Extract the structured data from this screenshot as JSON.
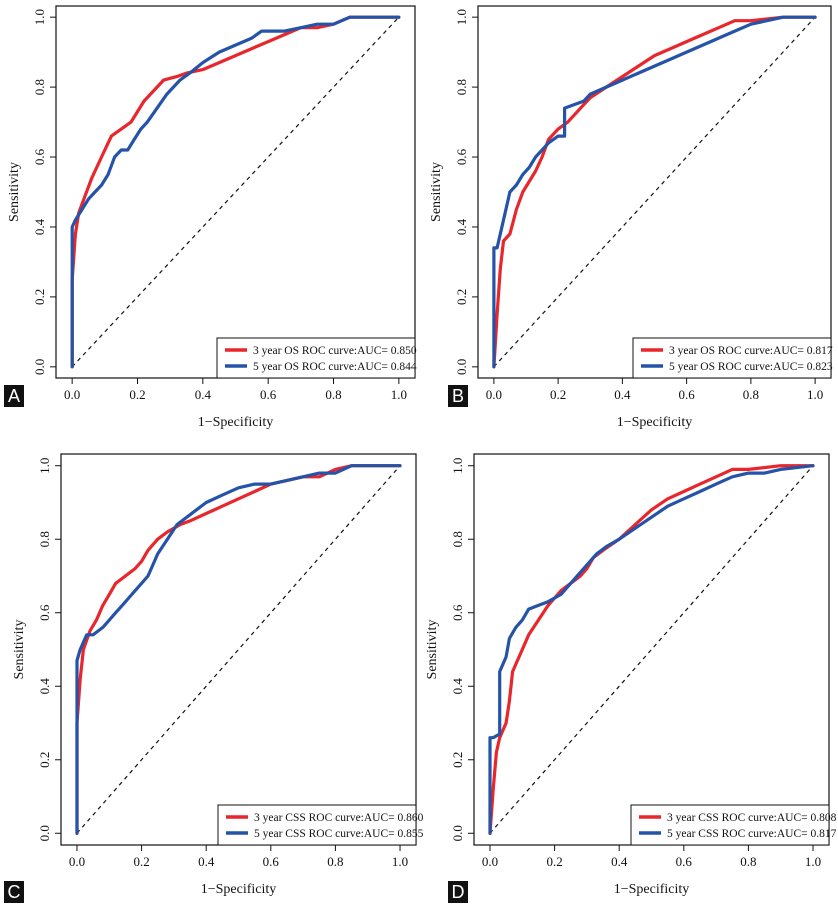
{
  "colors": {
    "year3": "#e8262b",
    "year5": "#2553a8",
    "diagonal": "#111111",
    "letter_bg": "#111111",
    "letter_fg": "#ffffff"
  },
  "chart_data": [
    {
      "panel": "A",
      "type": "line",
      "xlabel": "1−Specificity",
      "ylabel": "Sensitivity",
      "xlim": [
        0,
        1
      ],
      "ylim": [
        0,
        1
      ],
      "x_ticks": [
        "0.0",
        "0.2",
        "0.4",
        "0.6",
        "0.8",
        "1.0"
      ],
      "y_ticks": [
        "0.0",
        "0.2",
        "0.4",
        "0.6",
        "0.8",
        "1.0"
      ],
      "reference_line": "diagonal",
      "legend_position": "bottom-right",
      "series": [
        {
          "name": "3 year OS ROC curve:AUC= 0.850",
          "color_key": "year3",
          "x": [
            0,
            0,
            0.01,
            0.02,
            0.04,
            0.06,
            0.08,
            0.1,
            0.12,
            0.15,
            0.18,
            0.2,
            0.22,
            0.25,
            0.28,
            0.32,
            0.35,
            0.4,
            0.45,
            0.5,
            0.55,
            0.6,
            0.65,
            0.7,
            0.75,
            0.8,
            0.85,
            0.9,
            1
          ],
          "y": [
            0,
            0.25,
            0.38,
            0.44,
            0.49,
            0.54,
            0.58,
            0.62,
            0.66,
            0.68,
            0.7,
            0.73,
            0.76,
            0.79,
            0.82,
            0.83,
            0.84,
            0.85,
            0.87,
            0.89,
            0.91,
            0.93,
            0.95,
            0.97,
            0.97,
            0.98,
            1,
            1,
            1
          ]
        },
        {
          "name": "5 year OS ROC curve:AUC= 0.844",
          "color_key": "year5",
          "x": [
            0,
            0,
            0.01,
            0.03,
            0.05,
            0.07,
            0.09,
            0.11,
            0.13,
            0.15,
            0.17,
            0.19,
            0.21,
            0.23,
            0.26,
            0.29,
            0.31,
            0.33,
            0.36,
            0.4,
            0.45,
            0.5,
            0.55,
            0.58,
            0.65,
            0.7,
            0.75,
            0.8,
            0.85,
            1
          ],
          "y": [
            0,
            0.4,
            0.42,
            0.45,
            0.48,
            0.5,
            0.52,
            0.55,
            0.6,
            0.62,
            0.62,
            0.65,
            0.68,
            0.7,
            0.74,
            0.78,
            0.8,
            0.82,
            0.84,
            0.87,
            0.9,
            0.92,
            0.94,
            0.96,
            0.96,
            0.97,
            0.98,
            0.98,
            1,
            1
          ]
        }
      ]
    },
    {
      "panel": "B",
      "type": "line",
      "xlabel": "1−Specificity",
      "ylabel": "Sensitivity",
      "xlim": [
        0,
        1
      ],
      "ylim": [
        0,
        1
      ],
      "x_ticks": [
        "0.0",
        "0.2",
        "0.4",
        "0.6",
        "0.8",
        "1.0"
      ],
      "y_ticks": [
        "0.0",
        "0.2",
        "0.4",
        "0.6",
        "0.8",
        "1.0"
      ],
      "reference_line": "diagonal",
      "legend_position": "bottom-right",
      "series": [
        {
          "name": "3 year OS ROC curve:AUC= 0.817",
          "color_key": "year3",
          "x": [
            0,
            0.01,
            0.02,
            0.03,
            0.05,
            0.07,
            0.09,
            0.11,
            0.13,
            0.15,
            0.17,
            0.2,
            0.23,
            0.25,
            0.28,
            0.3,
            0.35,
            0.4,
            0.45,
            0.5,
            0.55,
            0.6,
            0.65,
            0.7,
            0.75,
            0.8,
            0.9,
            1
          ],
          "y": [
            0,
            0.15,
            0.28,
            0.36,
            0.38,
            0.45,
            0.5,
            0.53,
            0.56,
            0.6,
            0.65,
            0.68,
            0.7,
            0.72,
            0.75,
            0.77,
            0.8,
            0.83,
            0.86,
            0.89,
            0.91,
            0.93,
            0.95,
            0.97,
            0.99,
            0.99,
            1,
            1
          ]
        },
        {
          "name": "5 year OS ROC curve:AUC= 0.823",
          "color_key": "year5",
          "x": [
            0,
            0,
            0.01,
            0.03,
            0.05,
            0.07,
            0.09,
            0.11,
            0.13,
            0.15,
            0.17,
            0.2,
            0.22,
            0.22,
            0.25,
            0.28,
            0.3,
            0.35,
            0.4,
            0.45,
            0.5,
            0.55,
            0.6,
            0.65,
            0.7,
            0.75,
            0.8,
            0.85,
            0.9,
            1
          ],
          "y": [
            0,
            0.34,
            0.34,
            0.42,
            0.5,
            0.52,
            0.55,
            0.57,
            0.6,
            0.62,
            0.64,
            0.66,
            0.66,
            0.74,
            0.75,
            0.76,
            0.78,
            0.8,
            0.82,
            0.84,
            0.86,
            0.88,
            0.9,
            0.92,
            0.94,
            0.96,
            0.98,
            0.99,
            1,
            1
          ]
        }
      ]
    },
    {
      "panel": "C",
      "type": "line",
      "xlabel": "1−Specificity",
      "ylabel": "Sensitivity",
      "xlim": [
        0,
        1
      ],
      "ylim": [
        0,
        1
      ],
      "x_ticks": [
        "0.0",
        "0.2",
        "0.4",
        "0.6",
        "0.8",
        "1.0"
      ],
      "y_ticks": [
        "0.0",
        "0.2",
        "0.4",
        "0.6",
        "0.8",
        "1.0"
      ],
      "reference_line": "diagonal",
      "legend_position": "bottom-right",
      "series": [
        {
          "name": "3 year CSS ROC curve:AUC= 0.860",
          "color_key": "year3",
          "x": [
            0,
            0,
            0.01,
            0.02,
            0.04,
            0.06,
            0.08,
            0.1,
            0.12,
            0.15,
            0.18,
            0.2,
            0.22,
            0.25,
            0.28,
            0.32,
            0.35,
            0.4,
            0.45,
            0.5,
            0.55,
            0.6,
            0.65,
            0.7,
            0.75,
            0.8,
            0.85,
            0.9,
            1
          ],
          "y": [
            0,
            0.3,
            0.42,
            0.5,
            0.55,
            0.58,
            0.62,
            0.65,
            0.68,
            0.7,
            0.72,
            0.74,
            0.77,
            0.8,
            0.82,
            0.84,
            0.85,
            0.87,
            0.89,
            0.91,
            0.93,
            0.95,
            0.96,
            0.97,
            0.97,
            0.99,
            1,
            1,
            1
          ]
        },
        {
          "name": "5 year CSS ROC curve:AUC= 0.855",
          "color_key": "year5",
          "x": [
            0,
            0,
            0.01,
            0.03,
            0.05,
            0.08,
            0.1,
            0.12,
            0.14,
            0.16,
            0.18,
            0.2,
            0.22,
            0.25,
            0.28,
            0.31,
            0.34,
            0.37,
            0.4,
            0.45,
            0.5,
            0.55,
            0.6,
            0.65,
            0.7,
            0.75,
            0.8,
            0.85,
            1
          ],
          "y": [
            0,
            0.47,
            0.5,
            0.54,
            0.54,
            0.56,
            0.58,
            0.6,
            0.62,
            0.64,
            0.66,
            0.68,
            0.7,
            0.76,
            0.8,
            0.84,
            0.86,
            0.88,
            0.9,
            0.92,
            0.94,
            0.95,
            0.95,
            0.96,
            0.97,
            0.98,
            0.98,
            1,
            1
          ]
        }
      ]
    },
    {
      "panel": "D",
      "type": "line",
      "xlabel": "1−Specificity",
      "ylabel": "Sensitivity",
      "xlim": [
        0,
        1
      ],
      "ylim": [
        0,
        1
      ],
      "x_ticks": [
        "0.0",
        "0.2",
        "0.4",
        "0.6",
        "0.8",
        "1.0"
      ],
      "y_ticks": [
        "0.0",
        "0.2",
        "0.4",
        "0.6",
        "0.8",
        "1.0"
      ],
      "reference_line": "diagonal",
      "legend_position": "bottom-right",
      "series": [
        {
          "name": "3 year CSS ROC curve:AUC= 0.808",
          "color_key": "year3",
          "x": [
            0,
            0.01,
            0.02,
            0.03,
            0.04,
            0.05,
            0.06,
            0.07,
            0.08,
            0.1,
            0.12,
            0.15,
            0.18,
            0.2,
            0.22,
            0.25,
            0.28,
            0.3,
            0.32,
            0.35,
            0.4,
            0.45,
            0.5,
            0.55,
            0.6,
            0.65,
            0.7,
            0.75,
            0.8,
            0.9,
            1
          ],
          "y": [
            0,
            0.12,
            0.22,
            0.26,
            0.28,
            0.3,
            0.36,
            0.44,
            0.46,
            0.5,
            0.54,
            0.58,
            0.62,
            0.64,
            0.66,
            0.68,
            0.7,
            0.72,
            0.75,
            0.77,
            0.8,
            0.84,
            0.88,
            0.91,
            0.93,
            0.95,
            0.97,
            0.99,
            0.99,
            1,
            1
          ]
        },
        {
          "name": "5 year CSS ROC curve:AUC= 0.817",
          "color_key": "year5",
          "x": [
            0,
            0,
            0.01,
            0.03,
            0.03,
            0.05,
            0.06,
            0.08,
            0.1,
            0.12,
            0.15,
            0.18,
            0.2,
            0.22,
            0.25,
            0.28,
            0.3,
            0.33,
            0.36,
            0.4,
            0.45,
            0.5,
            0.55,
            0.6,
            0.65,
            0.7,
            0.75,
            0.8,
            0.85,
            0.9,
            1
          ],
          "y": [
            0,
            0.26,
            0.26,
            0.27,
            0.44,
            0.48,
            0.53,
            0.56,
            0.58,
            0.61,
            0.62,
            0.63,
            0.64,
            0.65,
            0.68,
            0.71,
            0.73,
            0.76,
            0.78,
            0.8,
            0.83,
            0.86,
            0.89,
            0.91,
            0.93,
            0.95,
            0.97,
            0.98,
            0.98,
            0.99,
            1
          ]
        }
      ]
    }
  ]
}
